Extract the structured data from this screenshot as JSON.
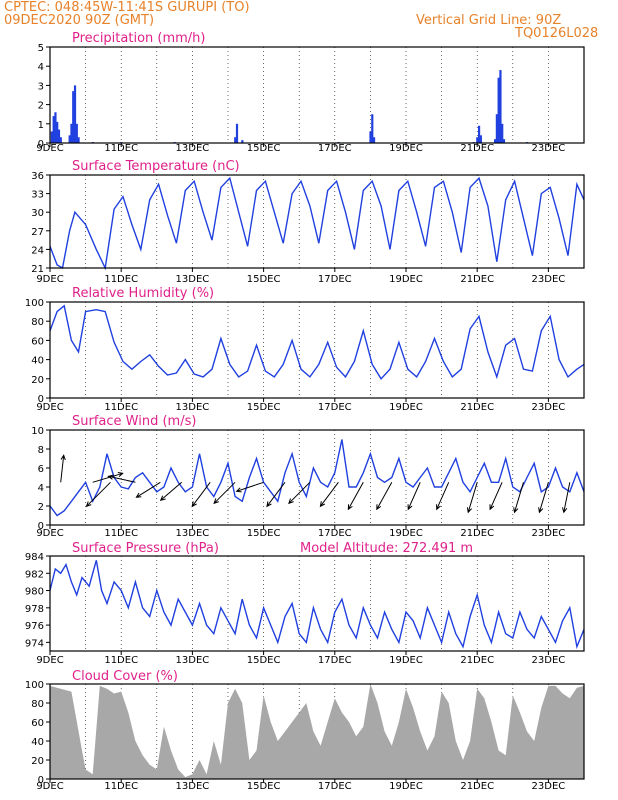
{
  "header": {
    "station": "CPTEC:   048:45W-11:41S   GURUPI (TO)",
    "run": "09DEC2020 90Z (GMT)",
    "grid_note": "Vertical Grid Line: 90Z",
    "code": "TQ0126L028"
  },
  "colors": {
    "header": "#e8822a",
    "panel_title": "#e0218a",
    "series": "#2040e0",
    "cloud": "#a8a8a8",
    "arrow": "#000000"
  },
  "chart_data": [
    {
      "id": "precip",
      "type": "bar",
      "title": "Precipitation (mm/h)",
      "ylim": [
        0,
        5
      ],
      "yticks": [
        0,
        1,
        2,
        3,
        4,
        5
      ],
      "x_day_range": [
        9,
        24
      ],
      "xtick_labels": [
        "9DEC",
        "11DEC",
        "13DEC",
        "15DEC",
        "17DEC",
        "19DEC",
        "21DEC",
        "23DEC"
      ],
      "grid": "vertical-dotted",
      "points": [
        [
          9.05,
          0.6
        ],
        [
          9.1,
          1.4
        ],
        [
          9.15,
          1.6
        ],
        [
          9.2,
          1.1
        ],
        [
          9.25,
          0.7
        ],
        [
          9.3,
          0.3
        ],
        [
          9.55,
          0.4
        ],
        [
          9.6,
          1.0
        ],
        [
          9.65,
          2.7
        ],
        [
          9.7,
          3.0
        ],
        [
          9.75,
          1.0
        ],
        [
          9.8,
          0.3
        ],
        [
          10.2,
          0.05
        ],
        [
          11.0,
          0.05
        ],
        [
          12.5,
          0.05
        ],
        [
          14.2,
          0.3
        ],
        [
          14.25,
          1.0
        ],
        [
          14.4,
          0.15
        ],
        [
          17.1,
          0.05
        ],
        [
          18.0,
          0.6
        ],
        [
          18.05,
          1.5
        ],
        [
          18.1,
          0.3
        ],
        [
          19.0,
          0.05
        ],
        [
          20.9,
          0.05
        ],
        [
          21.0,
          0.3
        ],
        [
          21.05,
          0.9
        ],
        [
          21.1,
          0.4
        ],
        [
          21.5,
          0.2
        ],
        [
          21.55,
          1.5
        ],
        [
          21.6,
          3.4
        ],
        [
          21.65,
          3.8
        ],
        [
          21.7,
          1.0
        ],
        [
          21.75,
          0.2
        ],
        [
          22.4,
          0.05
        ]
      ]
    },
    {
      "id": "temp",
      "type": "line",
      "title": "Surface Temperature (nC)",
      "ylim": [
        21,
        36
      ],
      "yticks": [
        21,
        24,
        27,
        30,
        33,
        36
      ],
      "x_day_range": [
        9,
        24
      ],
      "xtick_labels": [
        "9DEC",
        "11DEC",
        "13DEC",
        "15DEC",
        "17DEC",
        "19DEC",
        "21DEC",
        "23DEC"
      ],
      "grid": "vertical-dotted",
      "x": [
        9.0,
        9.2,
        9.35,
        9.55,
        9.7,
        10.0,
        10.3,
        10.55,
        10.8,
        11.05,
        11.3,
        11.55,
        11.8,
        12.05,
        12.3,
        12.55,
        12.8,
        13.05,
        13.3,
        13.55,
        13.8,
        14.05,
        14.3,
        14.55,
        14.8,
        15.05,
        15.3,
        15.55,
        15.8,
        16.05,
        16.3,
        16.55,
        16.8,
        17.05,
        17.3,
        17.55,
        17.8,
        18.05,
        18.3,
        18.55,
        18.8,
        19.05,
        19.3,
        19.55,
        19.8,
        20.05,
        20.3,
        20.55,
        20.8,
        21.05,
        21.3,
        21.55,
        21.8,
        22.05,
        22.3,
        22.55,
        22.8,
        23.05,
        23.3,
        23.55,
        23.8,
        24.0
      ],
      "values": [
        24.5,
        21.5,
        21.0,
        27.0,
        30.0,
        28.0,
        24.0,
        21.0,
        30.5,
        32.5,
        28.0,
        24.0,
        32.0,
        34.5,
        29.5,
        25.0,
        33.5,
        35.0,
        30.0,
        25.5,
        34.0,
        35.5,
        30.0,
        24.5,
        33.5,
        35.0,
        30.0,
        25.0,
        33.0,
        35.0,
        31.0,
        25.0,
        33.5,
        35.0,
        30.0,
        24.0,
        33.5,
        35.0,
        31.0,
        24.0,
        33.5,
        35.0,
        30.0,
        24.5,
        34.0,
        35.0,
        30.0,
        23.5,
        34.0,
        35.5,
        31.0,
        22.0,
        32.0,
        35.0,
        29.0,
        23.0,
        33.0,
        34.0,
        29.0,
        23.0,
        34.5,
        32.0
      ]
    },
    {
      "id": "rh",
      "type": "line",
      "title": "Relative Humidity (%)",
      "ylim": [
        0,
        100
      ],
      "yticks": [
        0,
        20,
        40,
        60,
        80,
        100
      ],
      "x_day_range": [
        9,
        24
      ],
      "xtick_labels": [
        "9DEC",
        "11DEC",
        "13DEC",
        "15DEC",
        "17DEC",
        "19DEC",
        "21DEC",
        "23DEC"
      ],
      "grid": "vertical-dotted",
      "x": [
        9.0,
        9.2,
        9.4,
        9.6,
        9.8,
        10.0,
        10.3,
        10.55,
        10.8,
        11.05,
        11.3,
        11.55,
        11.8,
        12.05,
        12.3,
        12.55,
        12.8,
        13.05,
        13.3,
        13.55,
        13.8,
        14.05,
        14.3,
        14.55,
        14.8,
        15.05,
        15.3,
        15.55,
        15.8,
        16.05,
        16.3,
        16.55,
        16.8,
        17.05,
        17.3,
        17.55,
        17.8,
        18.05,
        18.3,
        18.55,
        18.8,
        19.05,
        19.3,
        19.55,
        19.8,
        20.05,
        20.3,
        20.55,
        20.8,
        21.05,
        21.3,
        21.55,
        21.8,
        22.05,
        22.3,
        22.55,
        22.8,
        23.05,
        23.3,
        23.55,
        23.8,
        24.0
      ],
      "values": [
        70,
        90,
        96,
        60,
        48,
        90,
        92,
        90,
        58,
        38,
        30,
        38,
        45,
        33,
        24,
        26,
        40,
        25,
        22,
        30,
        62,
        35,
        22,
        28,
        55,
        28,
        22,
        35,
        60,
        30,
        22,
        35,
        58,
        32,
        22,
        38,
        70,
        35,
        20,
        30,
        58,
        30,
        22,
        38,
        62,
        38,
        22,
        30,
        72,
        85,
        48,
        22,
        55,
        62,
        30,
        28,
        70,
        85,
        40,
        22,
        30,
        35
      ]
    },
    {
      "id": "wind",
      "type": "line",
      "title": "Surface Wind (m/s)",
      "ylim": [
        0,
        10
      ],
      "yticks": [
        0,
        2,
        4,
        6,
        8,
        10
      ],
      "x_day_range": [
        9,
        24
      ],
      "xtick_labels": [
        "9DEC",
        "11DEC",
        "13DEC",
        "15DEC",
        "17DEC",
        "19DEC",
        "21DEC",
        "23DEC"
      ],
      "grid": "vertical-dotted",
      "x": [
        9.0,
        9.2,
        9.4,
        9.6,
        9.8,
        10.0,
        10.2,
        10.4,
        10.6,
        10.8,
        11.0,
        11.2,
        11.4,
        11.6,
        11.8,
        12.0,
        12.2,
        12.4,
        12.6,
        12.8,
        13.0,
        13.2,
        13.4,
        13.6,
        13.8,
        14.0,
        14.2,
        14.4,
        14.6,
        14.8,
        15.0,
        15.2,
        15.4,
        15.6,
        15.8,
        16.0,
        16.2,
        16.4,
        16.6,
        16.8,
        17.0,
        17.2,
        17.4,
        17.6,
        17.8,
        18.0,
        18.2,
        18.4,
        18.6,
        18.8,
        19.0,
        19.2,
        19.4,
        19.6,
        19.8,
        20.0,
        20.2,
        20.4,
        20.6,
        20.8,
        21.0,
        21.2,
        21.4,
        21.6,
        21.8,
        22.0,
        22.2,
        22.4,
        22.6,
        22.8,
        23.0,
        23.2,
        23.4,
        23.6,
        23.8,
        24.0
      ],
      "values": [
        2.0,
        1.0,
        1.5,
        2.5,
        3.5,
        4.5,
        2.5,
        4.0,
        7.5,
        5.0,
        4.0,
        3.8,
        5.0,
        5.5,
        4.5,
        3.5,
        4.0,
        6.0,
        4.5,
        3.5,
        4.0,
        7.5,
        4.0,
        3.0,
        4.5,
        6.5,
        3.0,
        2.5,
        5.0,
        7.0,
        4.5,
        3.5,
        2.5,
        5.5,
        7.5,
        4.5,
        3.0,
        6.0,
        4.5,
        4.0,
        5.5,
        9.0,
        4.0,
        4.0,
        5.5,
        7.5,
        5.0,
        4.5,
        5.0,
        7.0,
        4.5,
        4.0,
        5.0,
        6.0,
        4.0,
        4.0,
        5.5,
        7.0,
        4.5,
        3.5,
        5.0,
        6.5,
        4.5,
        4.5,
        7.0,
        4.0,
        3.5,
        5.0,
        6.5,
        3.5,
        4.0,
        6.0,
        4.0,
        3.5,
        5.5,
        3.5
      ],
      "vectors": [
        [
          9.3,
          0.1,
          0.9
        ],
        [
          10.2,
          1.0,
          0.3
        ],
        [
          10.7,
          -0.8,
          -0.8
        ],
        [
          11.4,
          -0.9,
          0.2
        ],
        [
          12.1,
          -0.8,
          -0.5
        ],
        [
          12.7,
          -0.7,
          -0.6
        ],
        [
          13.5,
          -0.6,
          -0.8
        ],
        [
          14.2,
          -0.7,
          -0.7
        ],
        [
          15.0,
          -0.9,
          -0.3
        ],
        [
          15.6,
          -0.6,
          -0.8
        ],
        [
          16.3,
          -0.7,
          -0.7
        ],
        [
          17.1,
          -0.6,
          -0.8
        ],
        [
          17.8,
          -0.5,
          -0.9
        ],
        [
          18.6,
          -0.5,
          -0.9
        ],
        [
          19.4,
          -0.4,
          -0.9
        ],
        [
          20.2,
          -0.4,
          -0.9
        ],
        [
          21.0,
          -0.3,
          -1.0
        ],
        [
          21.7,
          -0.4,
          -0.9
        ],
        [
          22.3,
          -0.3,
          -1.0
        ],
        [
          23.0,
          -0.3,
          -1.0
        ],
        [
          23.6,
          -0.2,
          -1.0
        ]
      ]
    },
    {
      "id": "pressure",
      "type": "line",
      "title": "Surface Pressure (hPa)",
      "annotation": "Model Altitude: 272.491  m",
      "ylim": [
        973,
        984
      ],
      "yticks": [
        974,
        976,
        978,
        980,
        982,
        984
      ],
      "x_day_range": [
        9,
        24
      ],
      "xtick_labels": [
        "9DEC",
        "11DEC",
        "13DEC",
        "15DEC",
        "17DEC",
        "19DEC",
        "21DEC",
        "23DEC"
      ],
      "grid": "vertical-dotted",
      "x": [
        9.0,
        9.15,
        9.3,
        9.45,
        9.6,
        9.75,
        9.9,
        10.1,
        10.3,
        10.45,
        10.6,
        10.8,
        11.0,
        11.2,
        11.4,
        11.6,
        11.8,
        12.0,
        12.2,
        12.4,
        12.6,
        12.8,
        13.0,
        13.2,
        13.4,
        13.6,
        13.8,
        14.0,
        14.2,
        14.4,
        14.6,
        14.8,
        15.0,
        15.2,
        15.4,
        15.6,
        15.8,
        16.0,
        16.2,
        16.4,
        16.6,
        16.8,
        17.0,
        17.2,
        17.4,
        17.6,
        17.8,
        18.0,
        18.2,
        18.4,
        18.6,
        18.8,
        19.0,
        19.2,
        19.4,
        19.6,
        19.8,
        20.0,
        20.2,
        20.4,
        20.6,
        20.8,
        21.0,
        21.2,
        21.4,
        21.6,
        21.8,
        22.0,
        22.2,
        22.4,
        22.6,
        22.8,
        23.0,
        23.2,
        23.4,
        23.6,
        23.8,
        24.0
      ],
      "values": [
        980.0,
        982.5,
        982.0,
        983.0,
        981.0,
        979.5,
        981.5,
        980.5,
        983.5,
        980.0,
        978.5,
        981.0,
        980.0,
        978.0,
        981.0,
        978.0,
        977.0,
        980.0,
        977.5,
        976.0,
        979.0,
        977.5,
        976.0,
        978.5,
        976.0,
        975.0,
        978.0,
        976.5,
        975.0,
        979.0,
        976.0,
        974.5,
        978.0,
        976.0,
        974.0,
        977.0,
        978.5,
        975.0,
        974.0,
        978.0,
        975.5,
        974.0,
        977.5,
        979.0,
        976.0,
        974.5,
        978.0,
        976.0,
        974.5,
        977.5,
        975.5,
        974.0,
        977.5,
        976.5,
        974.5,
        978.0,
        976.0,
        974.0,
        977.5,
        975.0,
        973.5,
        977.0,
        979.5,
        976.0,
        974.0,
        977.5,
        975.0,
        974.5,
        977.5,
        975.5,
        974.5,
        977.0,
        975.5,
        974.0,
        976.5,
        978.0,
        973.5,
        975.5
      ]
    },
    {
      "id": "cloud",
      "type": "area",
      "title": "Cloud Cover (%)",
      "ylim": [
        0,
        100
      ],
      "yticks": [
        0,
        20,
        40,
        60,
        80,
        100
      ],
      "x_day_range": [
        9,
        24
      ],
      "xtick_labels": [
        "9DEC",
        "11DEC",
        "13DEC",
        "15DEC",
        "17DEC",
        "19DEC",
        "21DEC",
        "23DEC"
      ],
      "grid": "vertical-dotted",
      "x": [
        9.0,
        9.3,
        9.6,
        9.9,
        10.0,
        10.2,
        10.4,
        10.6,
        10.8,
        11.0,
        11.2,
        11.4,
        11.6,
        11.8,
        12.0,
        12.2,
        12.4,
        12.6,
        12.8,
        13.0,
        13.2,
        13.4,
        13.6,
        13.8,
        14.0,
        14.2,
        14.4,
        14.6,
        14.8,
        15.0,
        15.2,
        15.4,
        15.6,
        15.8,
        16.0,
        16.2,
        16.4,
        16.6,
        16.8,
        17.0,
        17.2,
        17.4,
        17.6,
        17.8,
        18.0,
        18.2,
        18.4,
        18.6,
        18.8,
        19.0,
        19.2,
        19.4,
        19.6,
        19.8,
        20.0,
        20.2,
        20.4,
        20.6,
        20.8,
        21.0,
        21.2,
        21.4,
        21.6,
        21.8,
        22.0,
        22.2,
        22.4,
        22.6,
        22.8,
        23.0,
        23.2,
        23.4,
        23.6,
        23.8,
        24.0
      ],
      "values": [
        98,
        95,
        92,
        30,
        10,
        5,
        98,
        95,
        90,
        92,
        70,
        40,
        25,
        15,
        10,
        55,
        30,
        10,
        2,
        5,
        20,
        5,
        40,
        15,
        80,
        95,
        80,
        20,
        30,
        88,
        60,
        40,
        50,
        60,
        70,
        80,
        50,
        35,
        60,
        85,
        70,
        60,
        45,
        55,
        100,
        80,
        50,
        35,
        60,
        95,
        75,
        50,
        30,
        45,
        92,
        80,
        40,
        20,
        40,
        95,
        85,
        60,
        30,
        25,
        88,
        70,
        50,
        40,
        75,
        98,
        98,
        90,
        85,
        96,
        98
      ]
    }
  ]
}
